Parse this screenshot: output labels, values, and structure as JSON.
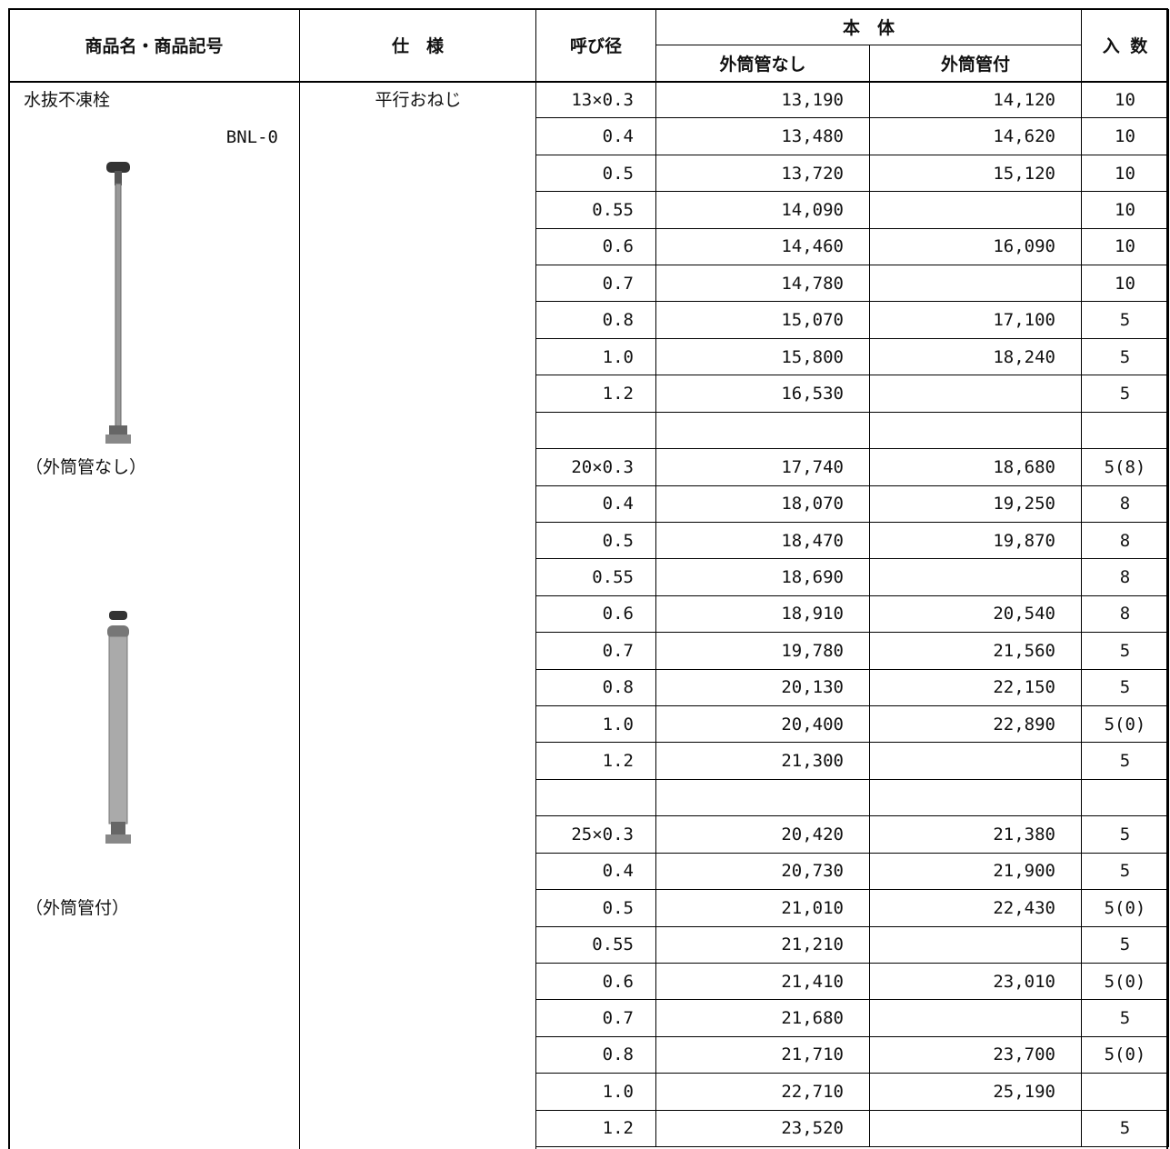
{
  "product": {
    "name": "水抜不凍栓",
    "code": "BNL-0",
    "spec": "平行おねじ",
    "caption_without": "（外筒管なし）",
    "caption_with": "（外筒管付）"
  },
  "table": {
    "header": {
      "product": "商品名・商品記号",
      "spec": "仕　様",
      "size": "呼び径",
      "body": "本　体",
      "without": "外筒管なし",
      "with": "外筒管付",
      "quantity": "入 数"
    },
    "rows": [
      [
        "13×0.3",
        "13,190",
        "14,120",
        "10"
      ],
      [
        "0.4",
        "13,480",
        "14,620",
        "10"
      ],
      [
        "0.5",
        "13,720",
        "15,120",
        "10"
      ],
      [
        "0.55",
        "14,090",
        null,
        "10"
      ],
      [
        "0.6",
        "14,460",
        "16,090",
        "10"
      ],
      [
        "0.7",
        "14,780",
        null,
        "10"
      ],
      [
        "0.8",
        "15,070",
        "17,100",
        "5"
      ],
      [
        "1.0",
        "15,800",
        "18,240",
        "5"
      ],
      [
        "1.2",
        "16,530",
        null,
        "5"
      ],
      [
        null,
        null,
        null,
        null
      ],
      [
        "20×0.3",
        "17,740",
        "18,680",
        "5(8)"
      ],
      [
        "0.4",
        "18,070",
        "19,250",
        "8"
      ],
      [
        "0.5",
        "18,470",
        "19,870",
        "8"
      ],
      [
        "0.55",
        "18,690",
        null,
        "8"
      ],
      [
        "0.6",
        "18,910",
        "20,540",
        "8"
      ],
      [
        "0.7",
        "19,780",
        "21,560",
        "5"
      ],
      [
        "0.8",
        "20,130",
        "22,150",
        "5"
      ],
      [
        "1.0",
        "20,400",
        "22,890",
        "5(0)"
      ],
      [
        "1.2",
        "21,300",
        null,
        "5"
      ],
      [
        null,
        null,
        null,
        null
      ],
      [
        "25×0.3",
        "20,420",
        "21,380",
        "5"
      ],
      [
        "0.4",
        "20,730",
        "21,900",
        "5"
      ],
      [
        "0.5",
        "21,010",
        "22,430",
        "5(0)"
      ],
      [
        "0.55",
        "21,210",
        null,
        "5"
      ],
      [
        "0.6",
        "21,410",
        "23,010",
        "5(0)"
      ],
      [
        "0.7",
        "21,680",
        null,
        "5"
      ],
      [
        "0.8",
        "21,710",
        "23,700",
        "5(0)"
      ],
      [
        "1.0",
        "22,710",
        "25,190",
        null
      ],
      [
        "1.2",
        "23,520",
        null,
        "5"
      ]
    ]
  }
}
